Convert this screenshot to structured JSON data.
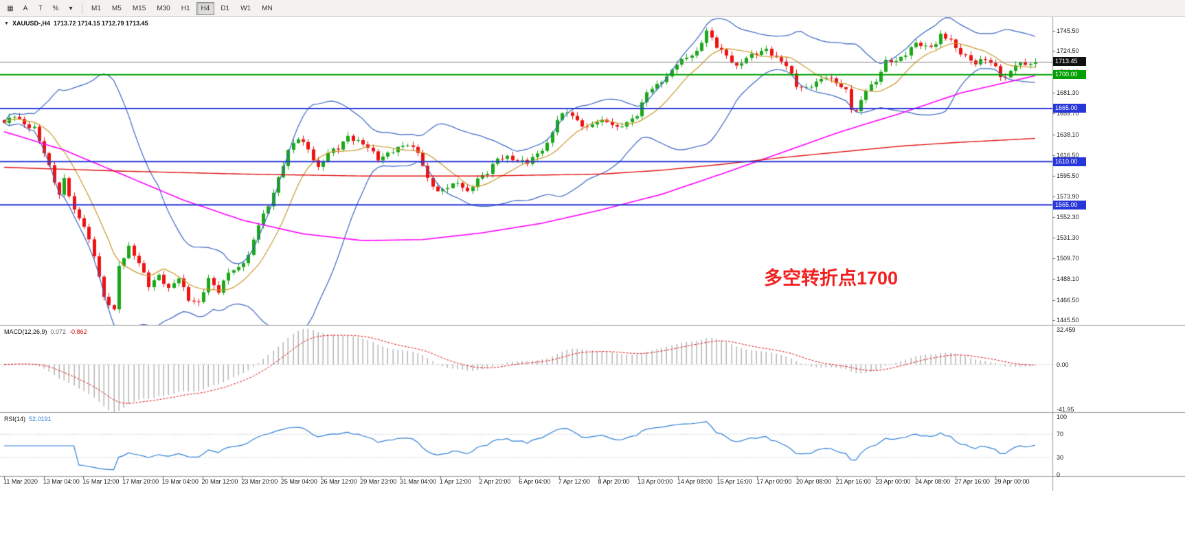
{
  "colors": {
    "bull": "#1aa81a",
    "bear": "#ee1111",
    "bollinger": "#3a64c4",
    "fast_ma_gold": "#c9992a",
    "slow_ma_magenta": "#ff00ff",
    "long_ma_red": "#e01010",
    "hline_blue": "#2736d8",
    "hline_green": "#00a000",
    "bid_line": "#808080",
    "macd_hist": "#b5b5b5",
    "macd_signal": "#e01010",
    "rsi_line": "#2e7fd6",
    "annotation_red": "#f32020",
    "badge_black": "#111111"
  },
  "toolbar": {
    "left_buttons": [
      {
        "id": "tile-windows",
        "glyph": "▦"
      },
      {
        "id": "arrow-tool",
        "glyph": "A"
      },
      {
        "id": "text-tool",
        "glyph": "T"
      },
      {
        "id": "percent-scale",
        "glyph": "%"
      },
      {
        "id": "tools-caret",
        "glyph": "▾"
      }
    ],
    "timeframes": [
      "M1",
      "M5",
      "M15",
      "M30",
      "H1",
      "H4",
      "D1",
      "W1",
      "MN"
    ],
    "active_timeframe": "H4"
  },
  "chart": {
    "dropdown_icon": "▼",
    "symbol": "XAUUSD-,H4",
    "ohlc": "1713.72 1714.15 1712.79 1713.45",
    "annotation": "多空转折点1700",
    "bid": 1713.45,
    "bid_badge": "1713.45",
    "price_ticks": [
      "1745.50",
      "1724.50",
      "1702.90",
      "1681.30",
      "1659.70",
      "1638.10",
      "1616.50",
      "1595.50",
      "1573.90",
      "1552.30",
      "1531.30",
      "1509.70",
      "1488.10",
      "1466.50",
      "1445.50"
    ],
    "hlines": [
      {
        "price": 1700,
        "badge": "1700.00",
        "color": "#00a000"
      },
      {
        "price": 1665,
        "badge": "1665.00",
        "color": "#2736d8"
      },
      {
        "price": 1610,
        "badge": "1610.00",
        "color": "#2736d8"
      },
      {
        "price": 1565,
        "badge": "1565.00",
        "color": "#2736d8"
      }
    ]
  },
  "chart_data": {
    "type": "candlestick",
    "symbol": "XAUUSD",
    "timeframe": "H4",
    "bars": 208,
    "y_range": [
      1445.5,
      1745.5
    ],
    "close_path_anchors": [
      [
        0,
        1650
      ],
      [
        2,
        1657
      ],
      [
        4,
        1649
      ],
      [
        6,
        1645
      ],
      [
        8,
        1618
      ],
      [
        10,
        1590
      ],
      [
        11,
        1576
      ],
      [
        12,
        1593
      ],
      [
        14,
        1558
      ],
      [
        16,
        1543
      ],
      [
        18,
        1514
      ],
      [
        20,
        1468
      ],
      [
        22,
        1455
      ],
      [
        23,
        1502
      ],
      [
        25,
        1522
      ],
      [
        27,
        1504
      ],
      [
        29,
        1481
      ],
      [
        31,
        1493
      ],
      [
        33,
        1477
      ],
      [
        35,
        1489
      ],
      [
        37,
        1468
      ],
      [
        39,
        1463
      ],
      [
        41,
        1487
      ],
      [
        43,
        1476
      ],
      [
        45,
        1496
      ],
      [
        47,
        1498
      ],
      [
        49,
        1513
      ],
      [
        51,
        1546
      ],
      [
        53,
        1563
      ],
      [
        55,
        1592
      ],
      [
        57,
        1623
      ],
      [
        59,
        1634
      ],
      [
        61,
        1622
      ],
      [
        63,
        1604
      ],
      [
        65,
        1619
      ],
      [
        67,
        1623
      ],
      [
        69,
        1637
      ],
      [
        71,
        1631
      ],
      [
        73,
        1624
      ],
      [
        75,
        1613
      ],
      [
        77,
        1619
      ],
      [
        79,
        1623
      ],
      [
        81,
        1628
      ],
      [
        83,
        1621
      ],
      [
        85,
        1591
      ],
      [
        87,
        1578
      ],
      [
        89,
        1585
      ],
      [
        91,
        1588
      ],
      [
        93,
        1577
      ],
      [
        95,
        1593
      ],
      [
        97,
        1599
      ],
      [
        99,
        1612
      ],
      [
        101,
        1615
      ],
      [
        103,
        1612
      ],
      [
        105,
        1608
      ],
      [
        107,
        1618
      ],
      [
        109,
        1629
      ],
      [
        111,
        1653
      ],
      [
        113,
        1662
      ],
      [
        115,
        1653
      ],
      [
        117,
        1644
      ],
      [
        119,
        1651
      ],
      [
        121,
        1653
      ],
      [
        123,
        1645
      ],
      [
        125,
        1649
      ],
      [
        127,
        1659
      ],
      [
        129,
        1683
      ],
      [
        131,
        1688
      ],
      [
        133,
        1698
      ],
      [
        135,
        1713
      ],
      [
        137,
        1717
      ],
      [
        139,
        1723
      ],
      [
        141,
        1747
      ],
      [
        143,
        1729
      ],
      [
        145,
        1719
      ],
      [
        147,
        1709
      ],
      [
        149,
        1718
      ],
      [
        151,
        1721
      ],
      [
        153,
        1727
      ],
      [
        155,
        1718
      ],
      [
        157,
        1709
      ],
      [
        159,
        1689
      ],
      [
        161,
        1687
      ],
      [
        163,
        1691
      ],
      [
        165,
        1698
      ],
      [
        167,
        1693
      ],
      [
        169,
        1683
      ],
      [
        170,
        1664
      ],
      [
        171,
        1661
      ],
      [
        173,
        1686
      ],
      [
        175,
        1693
      ],
      [
        177,
        1713
      ],
      [
        179,
        1715
      ],
      [
        181,
        1722
      ],
      [
        183,
        1732
      ],
      [
        185,
        1729
      ],
      [
        187,
        1733
      ],
      [
        188,
        1741
      ],
      [
        190,
        1735
      ],
      [
        191,
        1727
      ],
      [
        193,
        1720
      ],
      [
        195,
        1711
      ],
      [
        197,
        1716
      ],
      [
        199,
        1709
      ],
      [
        200,
        1700
      ],
      [
        201,
        1696
      ],
      [
        203,
        1710
      ],
      [
        205,
        1712
      ],
      [
        207,
        1713.45
      ]
    ],
    "overlays": {
      "bollinger": {
        "period": 20,
        "deviation": 2
      },
      "fast_ma_period": 10,
      "magenta_ma_anchors": [
        [
          0,
          1641
        ],
        [
          12,
          1622
        ],
        [
          24,
          1596
        ],
        [
          36,
          1570
        ],
        [
          48,
          1549
        ],
        [
          60,
          1535
        ],
        [
          72,
          1528
        ],
        [
          84,
          1529
        ],
        [
          96,
          1536
        ],
        [
          108,
          1546
        ],
        [
          120,
          1560
        ],
        [
          132,
          1576
        ],
        [
          144,
          1597
        ],
        [
          156,
          1619
        ],
        [
          168,
          1641
        ],
        [
          180,
          1660
        ],
        [
          192,
          1681
        ],
        [
          207,
          1699
        ]
      ],
      "red_ma_anchors": [
        [
          0,
          1604
        ],
        [
          24,
          1600
        ],
        [
          48,
          1597
        ],
        [
          72,
          1595
        ],
        [
          96,
          1595
        ],
        [
          120,
          1597
        ],
        [
          132,
          1601
        ],
        [
          144,
          1607
        ],
        [
          156,
          1614
        ],
        [
          168,
          1620
        ],
        [
          180,
          1626
        ],
        [
          192,
          1630
        ],
        [
          207,
          1634
        ]
      ]
    }
  },
  "macd": {
    "label": "MACD(12,26,9)",
    "value_main": "0.072",
    "value_signal": "-0.862",
    "params": [
      12,
      26,
      9
    ],
    "scale": [
      "32.459",
      "0.00",
      "-41.95"
    ],
    "scale_values": [
      32.459,
      0,
      -41.95
    ]
  },
  "rsi": {
    "label": "RSI(14)",
    "value": "52.0191",
    "period": 14,
    "scale": [
      "100",
      "70",
      "30",
      "0"
    ],
    "scale_values": [
      100,
      70,
      30,
      0
    ],
    "levels": [
      70,
      30
    ]
  },
  "time_axis": {
    "labels": [
      "11 Mar 2020",
      "13 Mar 04:00",
      "16 Mar 12:00",
      "17 Mar 20:00",
      "19 Mar 04:00",
      "20 Mar 12:00",
      "23 Mar 20:00",
      "25 Mar 04:00",
      "26 Mar 12:00",
      "29 Mar 23:00",
      "31 Mar 04:00",
      "1 Apr 12:00",
      "2 Apr 20:00",
      "6 Apr 04:00",
      "7 Apr 12:00",
      "8 Apr 20:00",
      "13 Apr 00:00",
      "14 Apr 08:00",
      "15 Apr 16:00",
      "17 Apr 00:00",
      "20 Apr 08:00",
      "21 Apr 16:00",
      "23 Apr 00:00",
      "24 Apr 08:00",
      "27 Apr 16:00",
      "29 Apr 00:00"
    ]
  }
}
